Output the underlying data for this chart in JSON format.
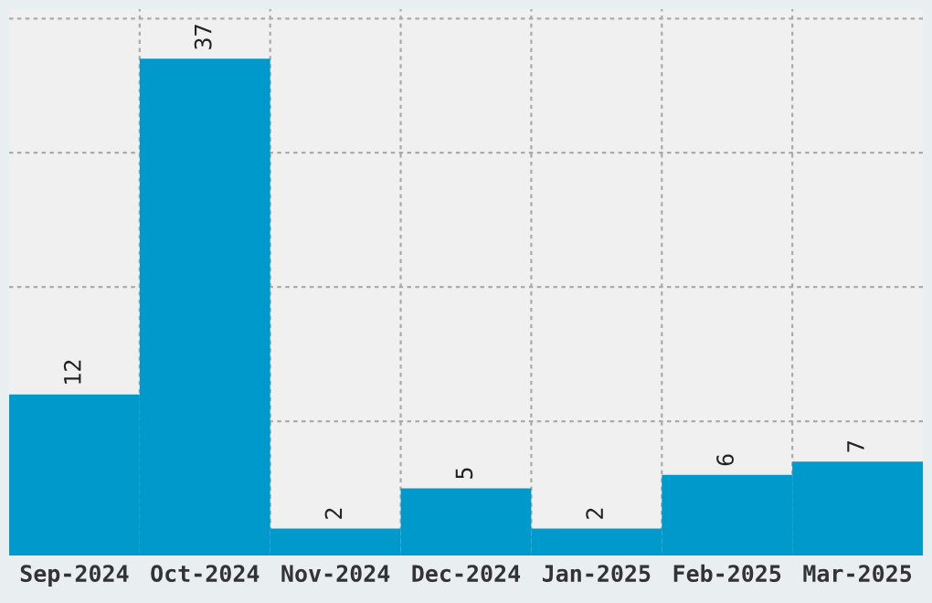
{
  "chart_data": {
    "type": "bar",
    "categories": [
      "Sep-2024",
      "Oct-2024",
      "Nov-2024",
      "Dec-2024",
      "Jan-2025",
      "Feb-2025",
      "Mar-2025"
    ],
    "values": [
      12,
      37,
      2,
      5,
      2,
      6,
      7
    ],
    "color": "#0099cc",
    "ylim": [
      0,
      40.7
    ],
    "yticks": [
      {
        "value": 10,
        "label": null
      },
      {
        "value": 20,
        "label": null
      },
      {
        "value": 30,
        "label": null
      },
      {
        "value": 40,
        "label": null
      }
    ],
    "data_labels": true,
    "grid": true,
    "tick_labels": "x"
  }
}
